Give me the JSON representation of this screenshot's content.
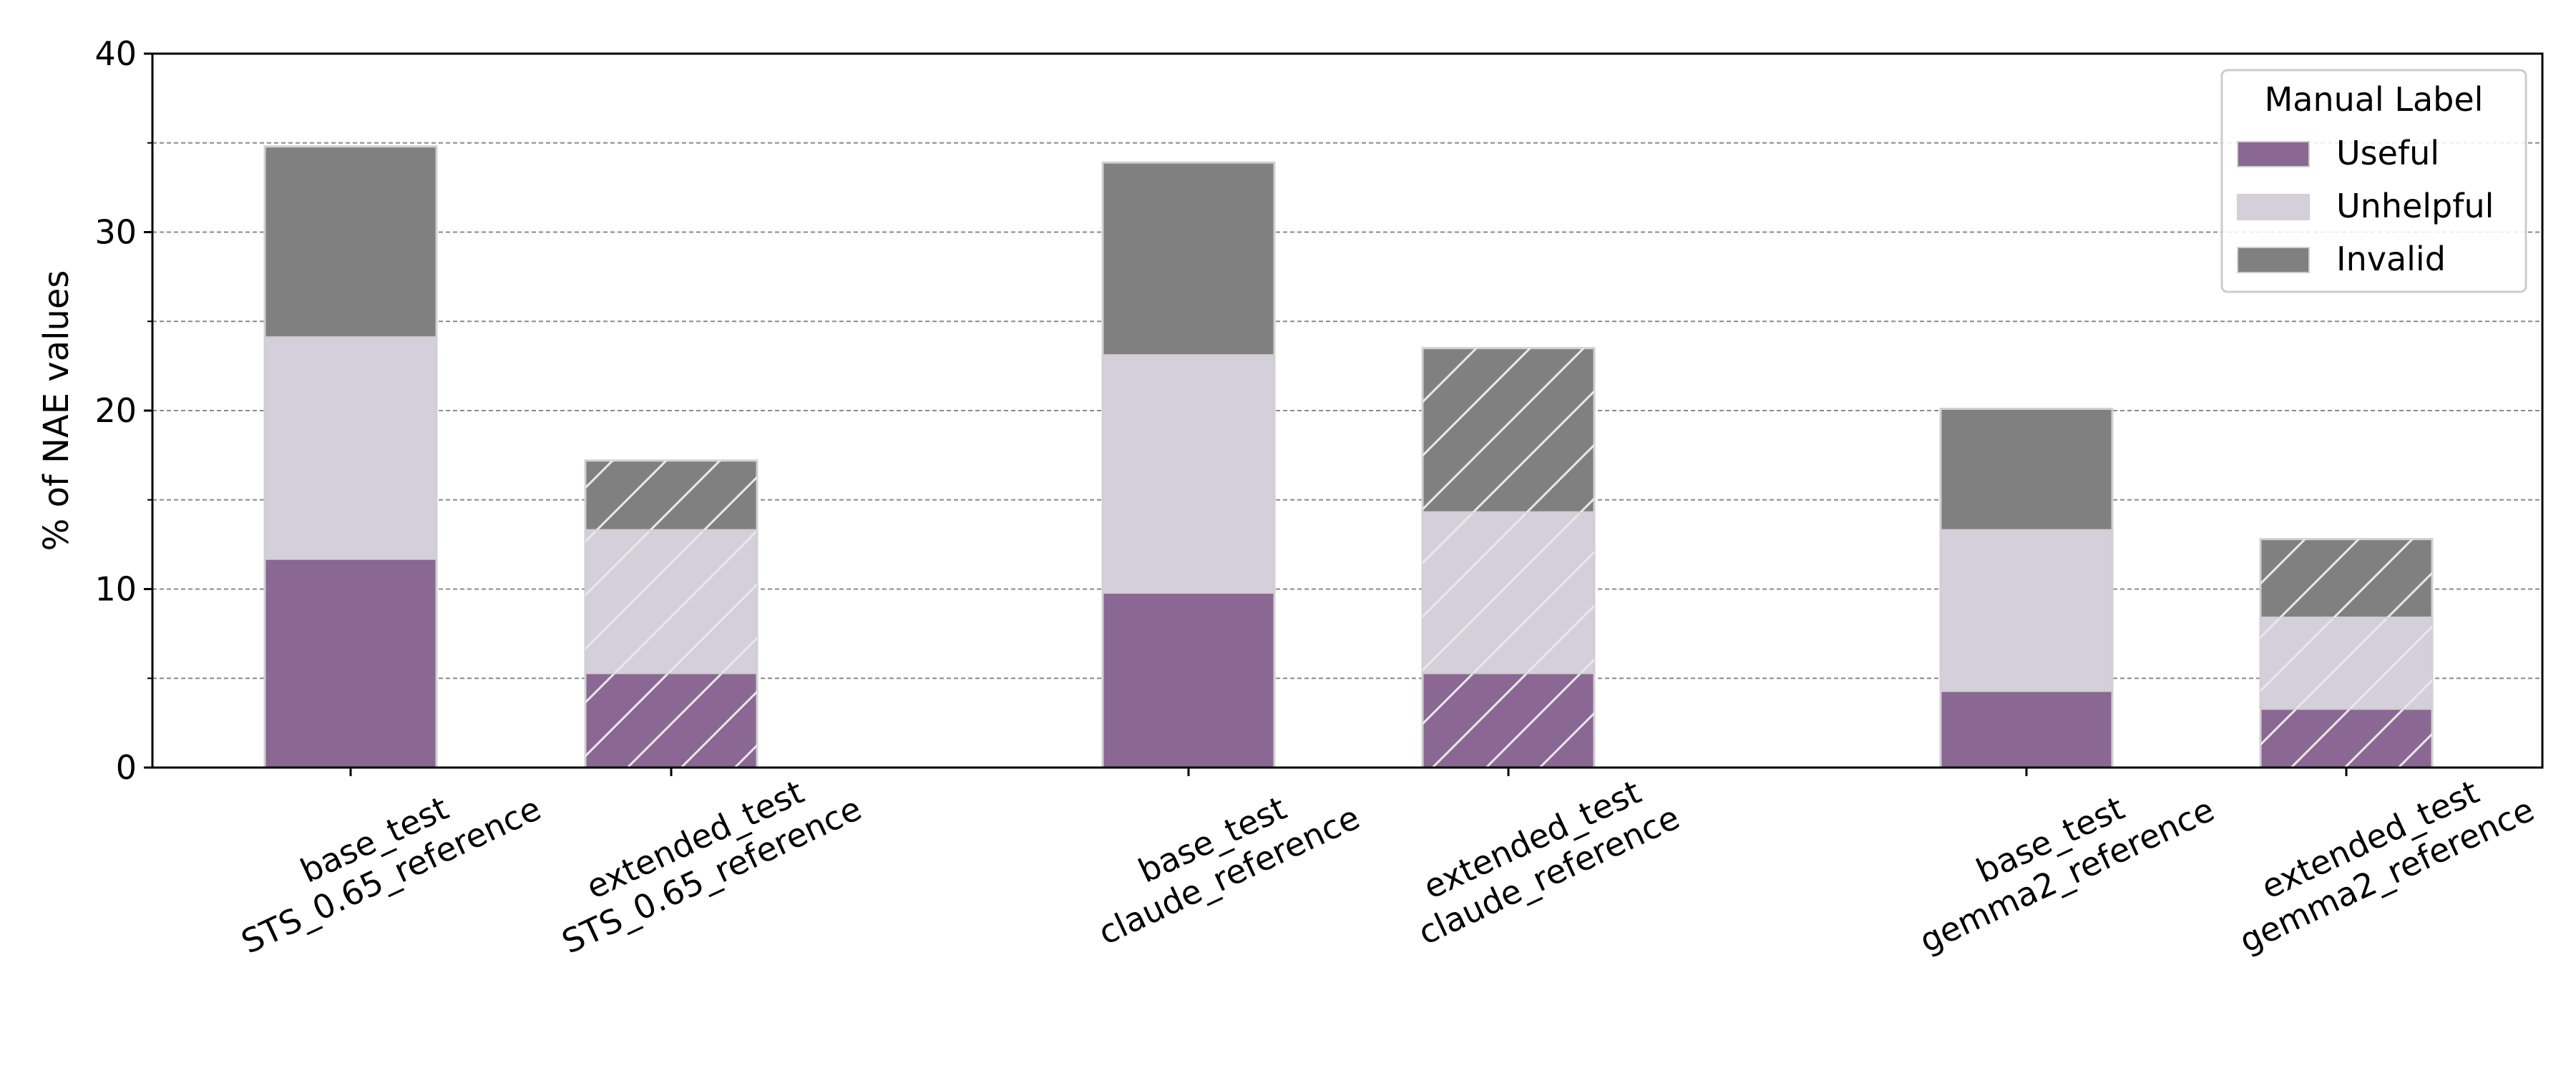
{
  "chart_data": {
    "type": "bar",
    "stacked": true,
    "ylabel": "% of NAE values",
    "ylim": [
      0,
      40
    ],
    "yticks": [
      0,
      10,
      20,
      30,
      40
    ],
    "grid": "horizontal dashed",
    "categories": [
      [
        "base_test",
        "STS_0.65_reference"
      ],
      [
        "extended_test",
        "STS_0.65_reference"
      ],
      [
        "base_test",
        "claude_reference"
      ],
      [
        "extended_test",
        "claude_reference"
      ],
      [
        "base_test",
        "gemma2_reference"
      ],
      [
        "extended_test",
        "gemma2_reference"
      ]
    ],
    "hatched": [
      false,
      true,
      false,
      true,
      false,
      true
    ],
    "series": [
      {
        "name": "Useful",
        "color": "#8b6794",
        "values": [
          11.7,
          5.3,
          9.8,
          5.3,
          4.3,
          3.3
        ]
      },
      {
        "name": "Unhelpful",
        "color": "#d5cedb",
        "values": [
          12.4,
          8.0,
          13.3,
          9.0,
          9.0,
          5.1
        ]
      },
      {
        "name": "Invalid",
        "color": "#808080",
        "values": [
          10.7,
          3.9,
          10.8,
          9.2,
          6.8,
          4.4
        ]
      }
    ],
    "legend": {
      "title": "Manual Label",
      "placement": "top-right"
    }
  }
}
